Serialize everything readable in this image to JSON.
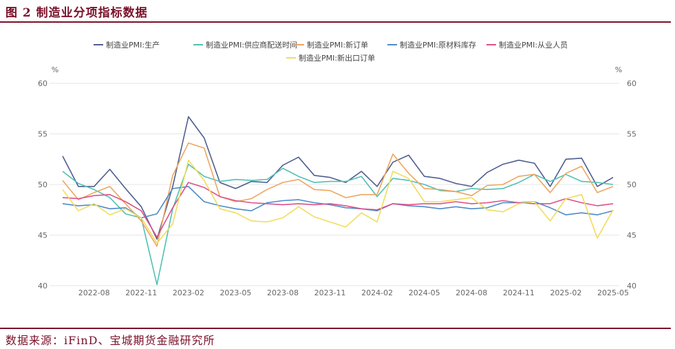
{
  "figure": {
    "title": "图 2 制造业分项指标数据",
    "source": "数据来源：iFinD、宝城期货金融研究所"
  },
  "chart_data": {
    "type": "line",
    "y_unit_left": "%",
    "y_unit_right": "%",
    "ylim": [
      40,
      60
    ],
    "yticks": [
      40,
      45,
      50,
      55,
      60
    ],
    "grid": true,
    "legend_position": "top",
    "x": [
      "2022-06",
      "2022-07",
      "2022-08",
      "2022-09",
      "2022-10",
      "2022-11",
      "2022-12",
      "2023-01",
      "2023-02",
      "2023-03",
      "2023-04",
      "2023-05",
      "2023-06",
      "2023-07",
      "2023-08",
      "2023-09",
      "2023-10",
      "2023-11",
      "2023-12",
      "2024-01",
      "2024-02",
      "2024-03",
      "2024-04",
      "2024-05",
      "2024-06",
      "2024-07",
      "2024-08",
      "2024-09",
      "2024-10",
      "2024-11",
      "2024-12",
      "2025-01",
      "2025-02",
      "2025-03",
      "2025-04",
      "2025-05"
    ],
    "xtick_labels": [
      "2022-08",
      "2022-11",
      "2023-02",
      "2023-05",
      "2023-08",
      "2023-11",
      "2024-02",
      "2024-05",
      "2024-08",
      "2024-11",
      "2025-02",
      "2025-05"
    ],
    "series": [
      {
        "name": "制造业PMI:生产",
        "color": "#4e5d8f",
        "values": [
          52.8,
          49.8,
          49.8,
          51.5,
          49.6,
          47.8,
          44.6,
          49.8,
          56.7,
          54.6,
          50.2,
          49.6,
          50.3,
          50.2,
          51.9,
          52.7,
          50.9,
          50.7,
          50.2,
          51.3,
          49.8,
          52.2,
          52.9,
          50.8,
          50.6,
          50.1,
          49.8,
          51.2,
          52.0,
          52.4,
          52.1,
          49.8,
          52.5,
          52.6,
          49.8,
          50.7
        ]
      },
      {
        "name": "制造业PMI:供应商配送时间",
        "color": "#4fc0b4",
        "values": [
          51.3,
          50.1,
          49.5,
          48.7,
          47.1,
          46.7,
          40.1,
          47.6,
          52.0,
          50.8,
          50.3,
          50.5,
          50.4,
          50.5,
          51.6,
          50.8,
          50.2,
          50.3,
          50.3,
          50.8,
          48.8,
          50.6,
          50.4,
          50.0,
          49.4,
          49.3,
          49.6,
          49.5,
          49.6,
          50.2,
          51.0,
          50.3,
          51.0,
          50.3,
          50.2,
          50.0
        ]
      },
      {
        "name": "制造业PMI:新订单",
        "color": "#eda65e",
        "values": [
          50.4,
          48.5,
          49.2,
          49.8,
          48.1,
          46.4,
          43.9,
          50.9,
          54.1,
          53.6,
          48.8,
          48.3,
          48.6,
          49.5,
          50.2,
          50.5,
          49.5,
          49.4,
          48.7,
          49.0,
          49.0,
          53.0,
          51.1,
          49.6,
          49.5,
          49.3,
          48.9,
          49.9,
          50.0,
          50.8,
          51.0,
          49.2,
          51.1,
          51.8,
          49.2,
          49.8
        ]
      },
      {
        "name": "制造业PMI:原材料库存",
        "color": "#4d8ac8",
        "values": [
          48.1,
          47.9,
          48.0,
          47.6,
          47.7,
          46.7,
          47.1,
          49.6,
          49.8,
          48.3,
          47.9,
          47.6,
          47.4,
          48.2,
          48.4,
          48.5,
          48.2,
          48.0,
          47.7,
          47.6,
          47.4,
          48.1,
          47.9,
          47.8,
          47.6,
          47.8,
          47.6,
          47.7,
          48.2,
          48.2,
          48.3,
          47.7,
          47.0,
          47.2,
          47.0,
          47.4
        ]
      },
      {
        "name": "制造业PMI:从业人员",
        "color": "#dc5088",
        "values": [
          48.7,
          48.6,
          48.9,
          49.0,
          48.3,
          47.4,
          44.8,
          47.7,
          50.2,
          49.7,
          48.8,
          48.4,
          48.2,
          48.1,
          48.0,
          48.1,
          48.0,
          48.1,
          47.9,
          47.6,
          47.5,
          48.1,
          48.0,
          48.1,
          48.1,
          48.3,
          48.1,
          48.2,
          48.4,
          48.2,
          48.1,
          48.1,
          48.6,
          48.2,
          47.9,
          48.1
        ]
      },
      {
        "name": "制造业PMI:新出口订单",
        "color": "#f0dc5c",
        "values": [
          49.5,
          47.4,
          48.1,
          47.0,
          47.6,
          46.7,
          44.2,
          46.1,
          52.4,
          50.4,
          47.6,
          47.2,
          46.4,
          46.3,
          46.7,
          47.8,
          46.8,
          46.3,
          45.8,
          47.2,
          46.3,
          51.3,
          50.6,
          48.3,
          48.3,
          48.5,
          48.7,
          47.5,
          47.3,
          48.1,
          48.3,
          46.4,
          48.6,
          49.0,
          44.7,
          47.5
        ]
      }
    ]
  }
}
